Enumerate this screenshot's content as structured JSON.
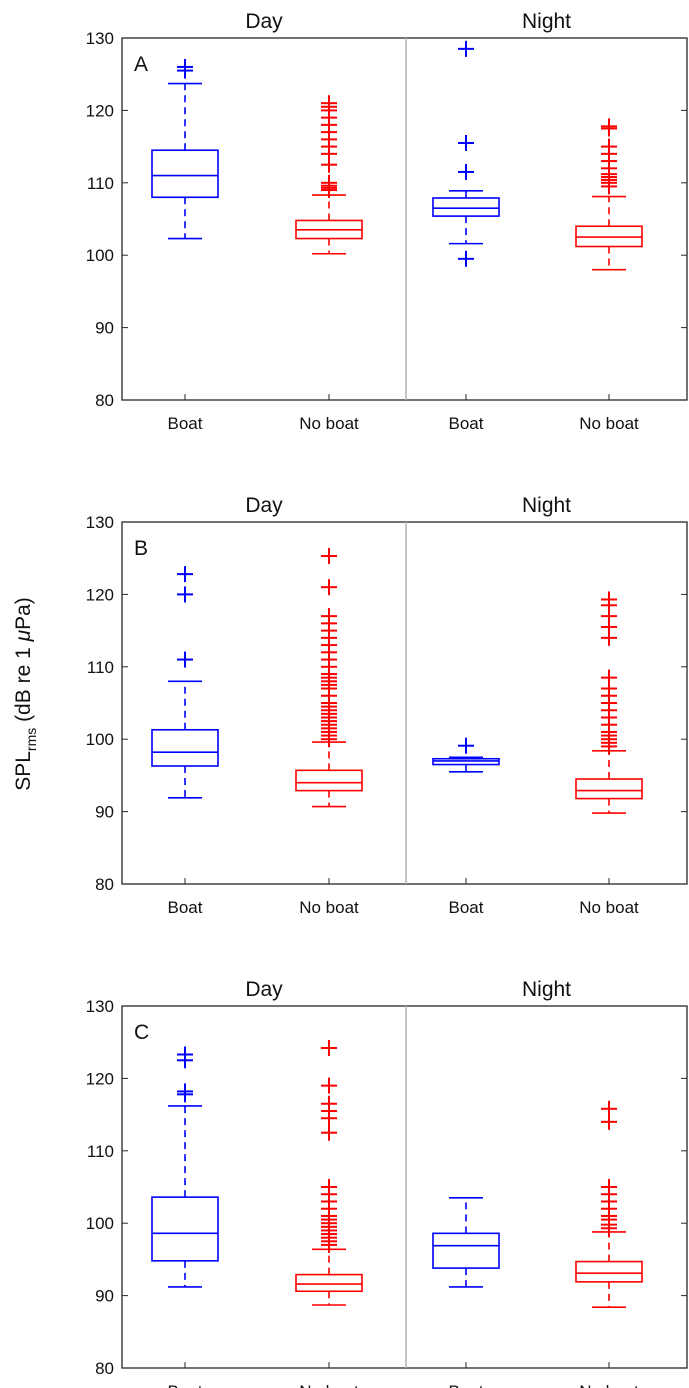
{
  "figure": {
    "ylabel_main": "SPL",
    "ylabel_sub": "rms",
    "ylabel_tail": " (dB re 1 ",
    "ylabel_mu": "μ",
    "ylabel_end": "Pa)"
  },
  "chart_data": [
    {
      "type": "box",
      "panel_label": "A",
      "group_titles": [
        "Day",
        "Night"
      ],
      "categories": [
        "Boat",
        "No boat",
        "Boat",
        "No boat"
      ],
      "ylim": [
        80,
        130
      ],
      "yticks": [
        80,
        90,
        100,
        110,
        120,
        130
      ],
      "boxes": [
        {
          "group": "Day",
          "category": "Boat",
          "color": "#0000ff",
          "whisker_low": 102.3,
          "q1": 108.0,
          "median": 111.0,
          "q3": 114.5,
          "whisker_high": 123.7,
          "outliers": [
            125.5,
            126.0
          ],
          "whisker_style": "dashed"
        },
        {
          "group": "Day",
          "category": "No boat",
          "color": "#ff0000",
          "whisker_low": 100.2,
          "q1": 102.3,
          "median": 103.5,
          "q3": 104.8,
          "whisker_high": 108.3,
          "outliers": [
            109.0,
            109.3,
            109.6,
            110.0,
            112.5,
            114.0,
            115.0,
            116.0,
            117.0,
            118.0,
            119.0,
            120.0,
            120.5,
            121.0
          ],
          "whisker_style": "dashed"
        },
        {
          "group": "Night",
          "category": "Boat",
          "color": "#0000ff",
          "whisker_low": 101.6,
          "q1": 105.4,
          "median": 106.5,
          "q3": 107.9,
          "whisker_high": 108.9,
          "outliers": [
            99.5,
            111.5,
            115.5,
            128.5
          ],
          "whisker_style": "dashed"
        },
        {
          "group": "Night",
          "category": "No boat",
          "color": "#ff0000",
          "whisker_low": 98.0,
          "q1": 101.2,
          "median": 102.5,
          "q3": 104.0,
          "whisker_high": 108.1,
          "outliers": [
            109.5,
            110.0,
            110.4,
            110.8,
            111.2,
            112.0,
            113.0,
            114.0,
            115.0,
            117.5,
            117.8
          ],
          "whisker_style": "dashed"
        }
      ]
    },
    {
      "type": "box",
      "panel_label": "B",
      "group_titles": [
        "Day",
        "Night"
      ],
      "categories": [
        "Boat",
        "No boat",
        "Boat",
        "No boat"
      ],
      "ylim": [
        80,
        130
      ],
      "yticks": [
        80,
        90,
        100,
        110,
        120,
        130
      ],
      "boxes": [
        {
          "group": "Day",
          "category": "Boat",
          "color": "#0000ff",
          "whisker_low": 91.9,
          "q1": 96.3,
          "median": 98.2,
          "q3": 101.3,
          "whisker_high": 108.0,
          "outliers": [
            111.0,
            120.0,
            122.8
          ],
          "whisker_style": "dashed"
        },
        {
          "group": "Day",
          "category": "No boat",
          "color": "#ff0000",
          "whisker_low": 90.7,
          "q1": 92.9,
          "median": 94.0,
          "q3": 95.7,
          "whisker_high": 99.6,
          "outliers": [
            100.0,
            100.5,
            101.0,
            101.5,
            102.0,
            102.5,
            103.0,
            103.5,
            104.0,
            104.5,
            105.0,
            106.0,
            107.0,
            107.5,
            108.0,
            108.5,
            109.0,
            110.0,
            111.0,
            112.0,
            113.0,
            114.0,
            115.0,
            116.0,
            117.0,
            121.0,
            125.3
          ],
          "whisker_style": "dashed"
        },
        {
          "group": "Night",
          "category": "Boat",
          "color": "#0000ff",
          "whisker_low": 95.5,
          "q1": 96.5,
          "median": 97.0,
          "q3": 97.3,
          "whisker_high": 97.5,
          "outliers": [
            99.1
          ],
          "whisker_style": "solid"
        },
        {
          "group": "Night",
          "category": "No boat",
          "color": "#ff0000",
          "whisker_low": 89.8,
          "q1": 91.8,
          "median": 92.9,
          "q3": 94.5,
          "whisker_high": 98.4,
          "outliers": [
            99.0,
            99.5,
            100.0,
            100.5,
            101.0,
            102.0,
            103.0,
            104.0,
            105.0,
            106.0,
            107.0,
            108.5,
            114.0,
            115.5,
            117.0,
            118.5,
            119.3
          ],
          "whisker_style": "dashed"
        }
      ]
    },
    {
      "type": "box",
      "panel_label": "C",
      "group_titles": [
        "Day",
        "Night"
      ],
      "categories": [
        "Boat",
        "No boat",
        "Boat",
        "No boat"
      ],
      "ylim": [
        80,
        130
      ],
      "yticks": [
        80,
        90,
        100,
        110,
        120,
        130
      ],
      "boxes": [
        {
          "group": "Day",
          "category": "Boat",
          "color": "#0000ff",
          "whisker_low": 91.2,
          "q1": 94.8,
          "median": 98.6,
          "q3": 103.6,
          "whisker_high": 116.2,
          "outliers": [
            117.8,
            118.2,
            122.5,
            123.3
          ],
          "whisker_style": "dashed"
        },
        {
          "group": "Day",
          "category": "No boat",
          "color": "#ff0000",
          "whisker_low": 88.7,
          "q1": 90.6,
          "median": 91.6,
          "q3": 92.9,
          "whisker_high": 96.4,
          "outliers": [
            97.0,
            97.5,
            98.0,
            98.5,
            99.0,
            99.5,
            100.0,
            100.5,
            101.0,
            102.0,
            103.0,
            104.0,
            105.0,
            112.5,
            114.5,
            115.5,
            116.5,
            119.0,
            124.2
          ],
          "whisker_style": "dashed"
        },
        {
          "group": "Night",
          "category": "Boat",
          "color": "#0000ff",
          "whisker_low": 91.2,
          "q1": 93.8,
          "median": 96.9,
          "q3": 98.6,
          "whisker_high": 103.5,
          "outliers": [],
          "whisker_style": "dashed"
        },
        {
          "group": "Night",
          "category": "No boat",
          "color": "#ff0000",
          "whisker_low": 88.4,
          "q1": 91.9,
          "median": 93.1,
          "q3": 94.7,
          "whisker_high": 98.8,
          "outliers": [
            99.3,
            99.8,
            100.5,
            101.0,
            102.0,
            103.0,
            104.0,
            105.0,
            114.0,
            115.8
          ],
          "whisker_style": "dashed"
        }
      ]
    }
  ]
}
